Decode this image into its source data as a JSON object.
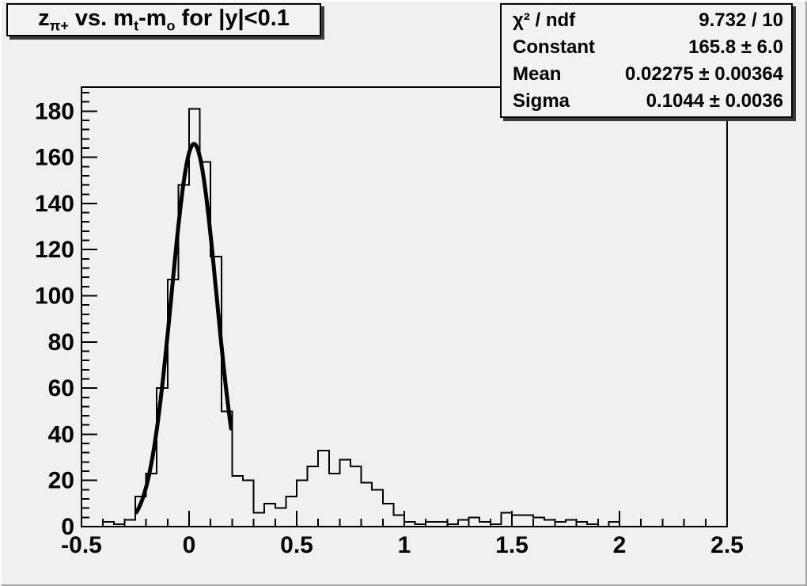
{
  "app": {
    "window_title": "ROOT histogram canvas"
  },
  "title_plain": "z_π+ vs. m_t-m_o for |y|<0.1",
  "title_segments": [
    {
      "text": "z",
      "sub": false
    },
    {
      "text": "π+",
      "sub": true
    },
    {
      "text": " vs. m",
      "sub": false
    },
    {
      "text": "t",
      "sub": true
    },
    {
      "text": "-m",
      "sub": false
    },
    {
      "text": "o",
      "sub": true
    },
    {
      "text": " for |y|<0.1",
      "sub": false
    }
  ],
  "stats_box": {
    "rows": [
      {
        "label": "χ² / ndf",
        "value": "9.732 / 10"
      },
      {
        "label": "Constant",
        "value": "165.8 ± 6.0"
      },
      {
        "label": "Mean",
        "value": "0.02275 ± 0.00364"
      },
      {
        "label": "Sigma",
        "value": "0.1044 ± 0.0036"
      }
    ]
  },
  "colors": {
    "background": "#f0f0f0",
    "line": "#000000",
    "pave_shadow": "#3a3a3a"
  },
  "chart_data": {
    "type": "bar",
    "subtype": "step-histogram-with-gaussian-fit",
    "title": "z_π+ vs. m_t-m_o for |y|<0.1",
    "xlabel": "",
    "ylabel": "",
    "xlim": [
      -0.5,
      2.5
    ],
    "ylim": [
      0,
      190.4
    ],
    "grid": false,
    "legend": false,
    "bin_start": -0.5,
    "bin_width": 0.05,
    "n_bins": 60,
    "values": [
      0,
      0,
      2,
      1,
      3,
      13,
      23,
      60,
      107,
      148,
      181,
      158,
      117,
      50,
      22,
      20,
      6,
      10,
      8,
      13,
      20,
      26,
      33,
      23,
      29,
      26,
      19,
      16,
      10,
      5,
      2,
      1,
      2,
      2,
      1,
      3,
      4,
      2,
      1,
      6,
      5,
      5,
      4,
      3,
      2,
      3,
      2,
      1,
      0,
      2,
      0,
      0,
      0,
      0,
      0,
      0,
      0,
      0,
      0,
      0
    ],
    "fit": {
      "shape": "gaussian",
      "constant": 165.8,
      "mean": 0.02275,
      "sigma": 0.1044,
      "chi2": 9.732,
      "ndf": 10,
      "draw_range": [
        -0.245,
        0.195
      ]
    },
    "x_axis": {
      "major_tick_values": [
        -0.5,
        0,
        0.5,
        1,
        1.5,
        2,
        2.5
      ],
      "major_tick_labels": [
        "-0.5",
        "0",
        "0.5",
        "1",
        "1.5",
        "2",
        "2.5"
      ],
      "minor_tick_step": 0.1
    },
    "y_axis": {
      "major_tick_step": 20,
      "minor_tick_step": 4,
      "major_tick_labels": [
        "0",
        "20",
        "40",
        "60",
        "80",
        "100",
        "120",
        "140",
        "160",
        "180"
      ]
    }
  }
}
